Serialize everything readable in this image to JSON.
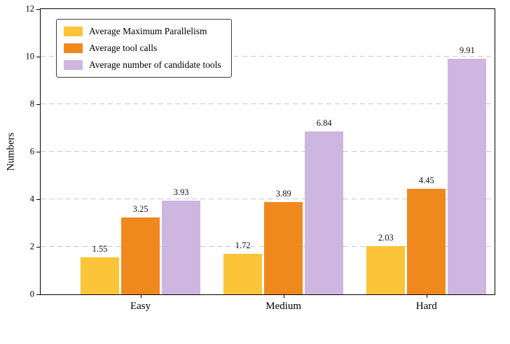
{
  "chart_data": {
    "type": "bar",
    "title": "",
    "categories": [
      "Easy",
      "Medium",
      "Hard"
    ],
    "series": [
      {
        "name": "Average Maximum Parallelism",
        "color": "#FCC438",
        "values": [
          1.55,
          1.72,
          2.03
        ]
      },
      {
        "name": "Average tool calls",
        "color": "#F0891D",
        "values": [
          3.25,
          3.89,
          4.45
        ]
      },
      {
        "name": "Average number of candidate tools",
        "color": "#CDB6DF",
        "values": [
          3.93,
          6.84,
          9.91
        ]
      }
    ],
    "xlabel": "",
    "ylabel": "Numbers",
    "ylim": [
      0,
      12
    ],
    "yticks": [
      0,
      2,
      4,
      6,
      8,
      10,
      12
    ],
    "grid": "horizontal-dashed",
    "gridline_color": "#c9c9c9",
    "legend_position": "upper-left",
    "value_label_decimals": 2
  }
}
